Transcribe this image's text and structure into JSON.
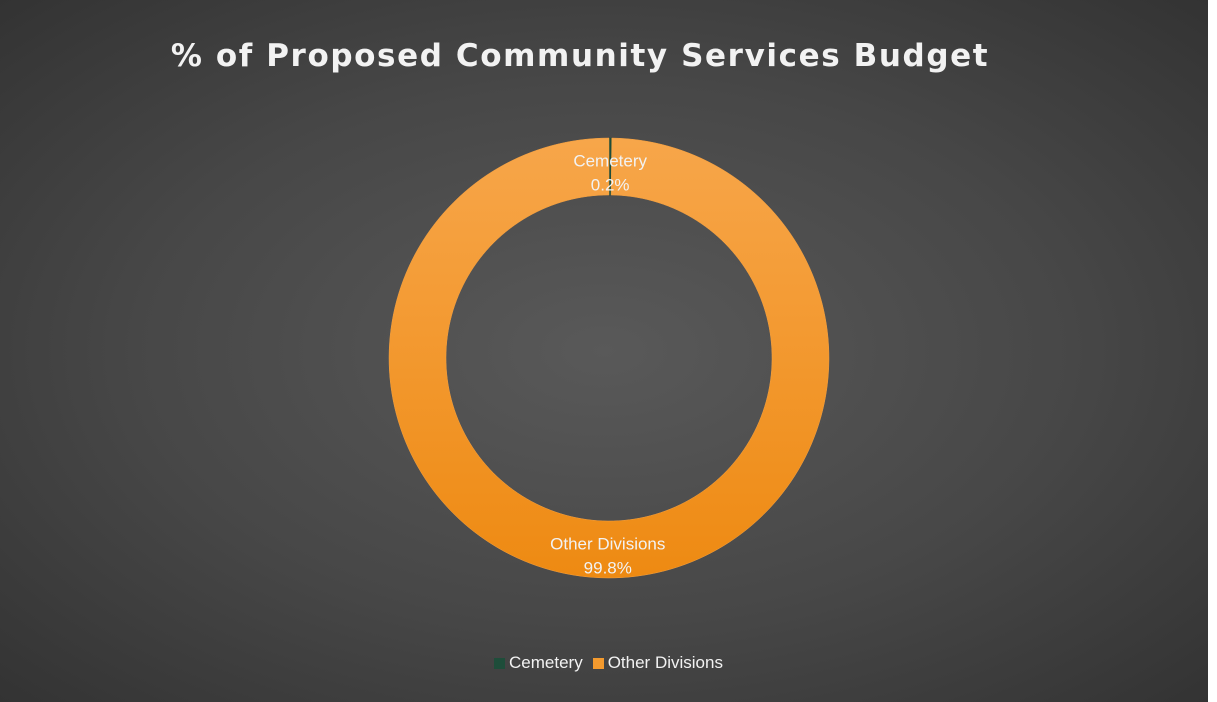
{
  "chart_data": {
    "type": "pie",
    "variant": "doughnut",
    "title": "% of Proposed Community Services Budget",
    "categories": [
      "Cemetery",
      "Other Divisions"
    ],
    "values": [
      0.2,
      99.8
    ],
    "labels": [
      "0.2%",
      "99.8%"
    ],
    "colors": [
      "#1e4d3a",
      "#f39a2e"
    ],
    "legend": "bottom"
  }
}
